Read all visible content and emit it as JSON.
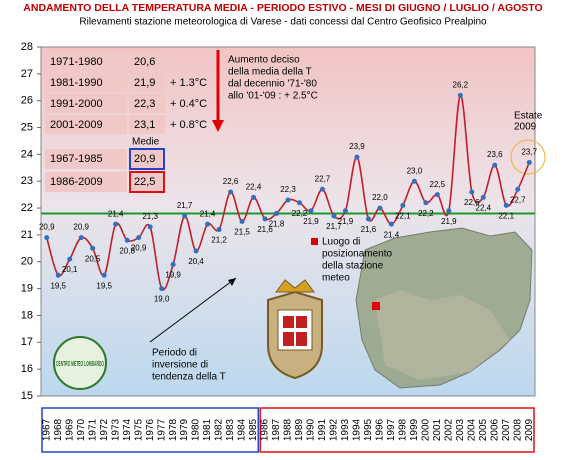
{
  "chart_data": {
    "type": "line",
    "title": "ANDAMENTO DELLA TEMPERATURA MEDIA - PERIODO ESTIVO - MESI DI GIUGNO / LUGLIO / AGOSTO",
    "subtitle": "Rilevamenti stazione meteorologica di Varese - dati concessi dal Centro Geofisico Prealpino",
    "categories": [
      "1967",
      "1968",
      "1969",
      "1970",
      "1971",
      "1972",
      "1973",
      "1974",
      "1975",
      "1976",
      "1977",
      "1978",
      "1979",
      "1980",
      "1981",
      "1982",
      "1983",
      "1984",
      "1985",
      "1986",
      "1987",
      "1988",
      "1989",
      "1990",
      "1991",
      "1992",
      "1993",
      "1994",
      "1995",
      "1996",
      "1997",
      "1998",
      "1999",
      "2000",
      "2001",
      "2002",
      "2003",
      "2004",
      "2005",
      "2006",
      "2007",
      "2008",
      "2009"
    ],
    "values": [
      20.9,
      19.5,
      20.1,
      20.9,
      20.5,
      19.5,
      21.4,
      20.8,
      20.9,
      21.3,
      19.0,
      19.9,
      21.7,
      20.4,
      21.4,
      21.2,
      22.6,
      21.5,
      22.4,
      21.6,
      21.8,
      22.3,
      22.2,
      21.9,
      22.7,
      21.7,
      21.9,
      23.9,
      21.6,
      22.0,
      21.4,
      22.1,
      23.0,
      22.2,
      22.5,
      21.9,
      26.2,
      22.6,
      22.4,
      23.6,
      22.1,
      22.7,
      23.7
    ],
    "value_labels": [
      "20,9",
      "19,5",
      "20,1",
      "20,9",
      "20,5",
      "19,5",
      "21,4",
      "20,8",
      "20,9",
      "21,3",
      "19,0",
      "19,9",
      "21,7",
      "20,4",
      "21,4",
      "21,2",
      "22,6",
      "21,5",
      "22,4",
      "21,6",
      "21,8",
      "22,3",
      "22,2",
      "21,9",
      "22,7",
      "21,7",
      "21,9",
      "23,9",
      "21,6",
      "22,0",
      "21,4",
      "22,1",
      "23,0",
      "22,2",
      "22,5",
      "21,9",
      "26,2",
      "22,6",
      "22,4",
      "23,6",
      "22,1",
      "22,7",
      "23,7"
    ],
    "color": "#c0202a",
    "reference_line": 21.8,
    "ylim": [
      15,
      28
    ],
    "yticks": [
      15,
      16,
      17,
      18,
      19,
      20,
      21,
      22,
      23,
      24,
      25,
      26,
      27,
      28
    ],
    "averages_table": [
      [
        "1971-1980",
        "20,6",
        ""
      ],
      [
        "1981-1990",
        "21,9",
        "+ 1.3°C"
      ],
      [
        "1991-2000",
        "22,3",
        "+ 0.4°C"
      ],
      [
        "2001-2009",
        "23,1",
        "+ 0.8°C"
      ]
    ],
    "medie_title": "Medie",
    "medie_table": [
      [
        "1967-1985",
        "20,9"
      ],
      [
        "1986-2009",
        "22,5"
      ]
    ],
    "trend_note": [
      "Aumento deciso",
      "della media della T",
      "dal decennio '71-'80",
      "allo '01-'09 : + 2.5°C"
    ],
    "summer_note": [
      "Estate",
      "2009"
    ],
    "station_note": [
      "Luogo di",
      "posizionamento",
      "della stazione",
      "meteo"
    ],
    "inversion_note": [
      "Periodo di",
      "inversione di",
      "tendenza della T"
    ],
    "logo_text": "CENTRO METEO LOMBARDO"
  }
}
